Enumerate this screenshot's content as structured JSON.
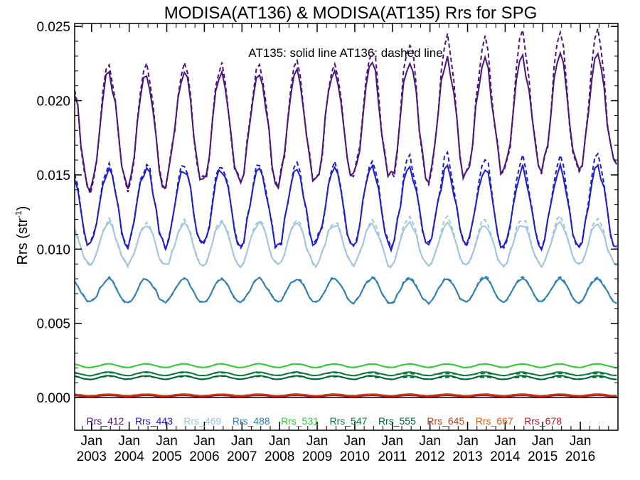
{
  "chart_data": {
    "type": "line",
    "title": "MODISA(AT136) & MODISA(AT135)  Rrs for SPG",
    "ylabel_main": "Rrs (str",
    "ylabel_sup": "-1",
    "ylabel_end": ")",
    "annotation": "AT135: solid line   AT136: dashed line",
    "xlim": [
      2002.55,
      2017.0
    ],
    "ylim": [
      -0.0022,
      0.0252
    ],
    "yticks": [
      "0.025",
      "0.020",
      "0.015",
      "0.010",
      "0.005",
      "0.000"
    ],
    "ytick_values": [
      0.025,
      0.02,
      0.015,
      0.01,
      0.005,
      0.0
    ],
    "xticks_month": [
      "Jan",
      "Jan",
      "Jan",
      "Jan",
      "Jan",
      "Jan",
      "Jan",
      "Jan",
      "Jan",
      "Jan",
      "Jan",
      "Jan",
      "Jan",
      "Jan"
    ],
    "xticks_year": [
      "2003",
      "2004",
      "2005",
      "2006",
      "2007",
      "2008",
      "2009",
      "2010",
      "2011",
      "2012",
      "2013",
      "2014",
      "2015",
      "2016"
    ],
    "xtick_values": [
      2003,
      2004,
      2005,
      2006,
      2007,
      2008,
      2009,
      2010,
      2011,
      2012,
      2013,
      2014,
      2015,
      2016
    ],
    "zero_line": 0.0,
    "series": [
      {
        "name": "Rrs_412",
        "color": "#4b1282",
        "amp": 0.0038,
        "base": 0.0178,
        "trend": 0.0001,
        "dash_delta": 0.0015
      },
      {
        "name": "Rrs_443",
        "color": "#1a1ae0",
        "amp": 0.0026,
        "base": 0.0128,
        "trend": 0.0,
        "dash_delta": 0.0008
      },
      {
        "name": "Rrs_469",
        "color": "#9fc6e0",
        "amp": 0.0014,
        "base": 0.0103,
        "trend": 0.0,
        "dash_delta": 0.0004
      },
      {
        "name": "Rrs_488",
        "color": "#2c7fb8",
        "amp": 0.0008,
        "base": 0.0072,
        "trend": 0.0,
        "dash_delta": 0.0001
      },
      {
        "name": "Rrs_531",
        "color": "#33cc33",
        "amp": 0.00012,
        "base": 0.00215,
        "trend": 0.0,
        "dash_delta": 0.0
      },
      {
        "name": "Rrs_547",
        "color": "#0b7a3c",
        "amp": 0.00012,
        "base": 0.0016,
        "trend": 0.0,
        "dash_delta": -0.0001
      },
      {
        "name": "Rrs_555",
        "color": "#006633",
        "amp": 0.00012,
        "base": 0.00135,
        "trend": 0.0,
        "dash_delta": -0.0001
      },
      {
        "name": "Rrs_645",
        "color": "#b3471a",
        "amp": 5e-05,
        "base": 0.00018,
        "trend": 0.0,
        "dash_delta": 0.0
      },
      {
        "name": "Rrs_667",
        "color": "#e05a12",
        "amp": 5e-05,
        "base": 0.00012,
        "trend": 0.0,
        "dash_delta": 0.0
      },
      {
        "name": "Rrs_678",
        "color": "#c0182a",
        "amp": 5e-05,
        "base": 0.0001,
        "trend": 0.0,
        "dash_delta": 0.0
      }
    ]
  }
}
